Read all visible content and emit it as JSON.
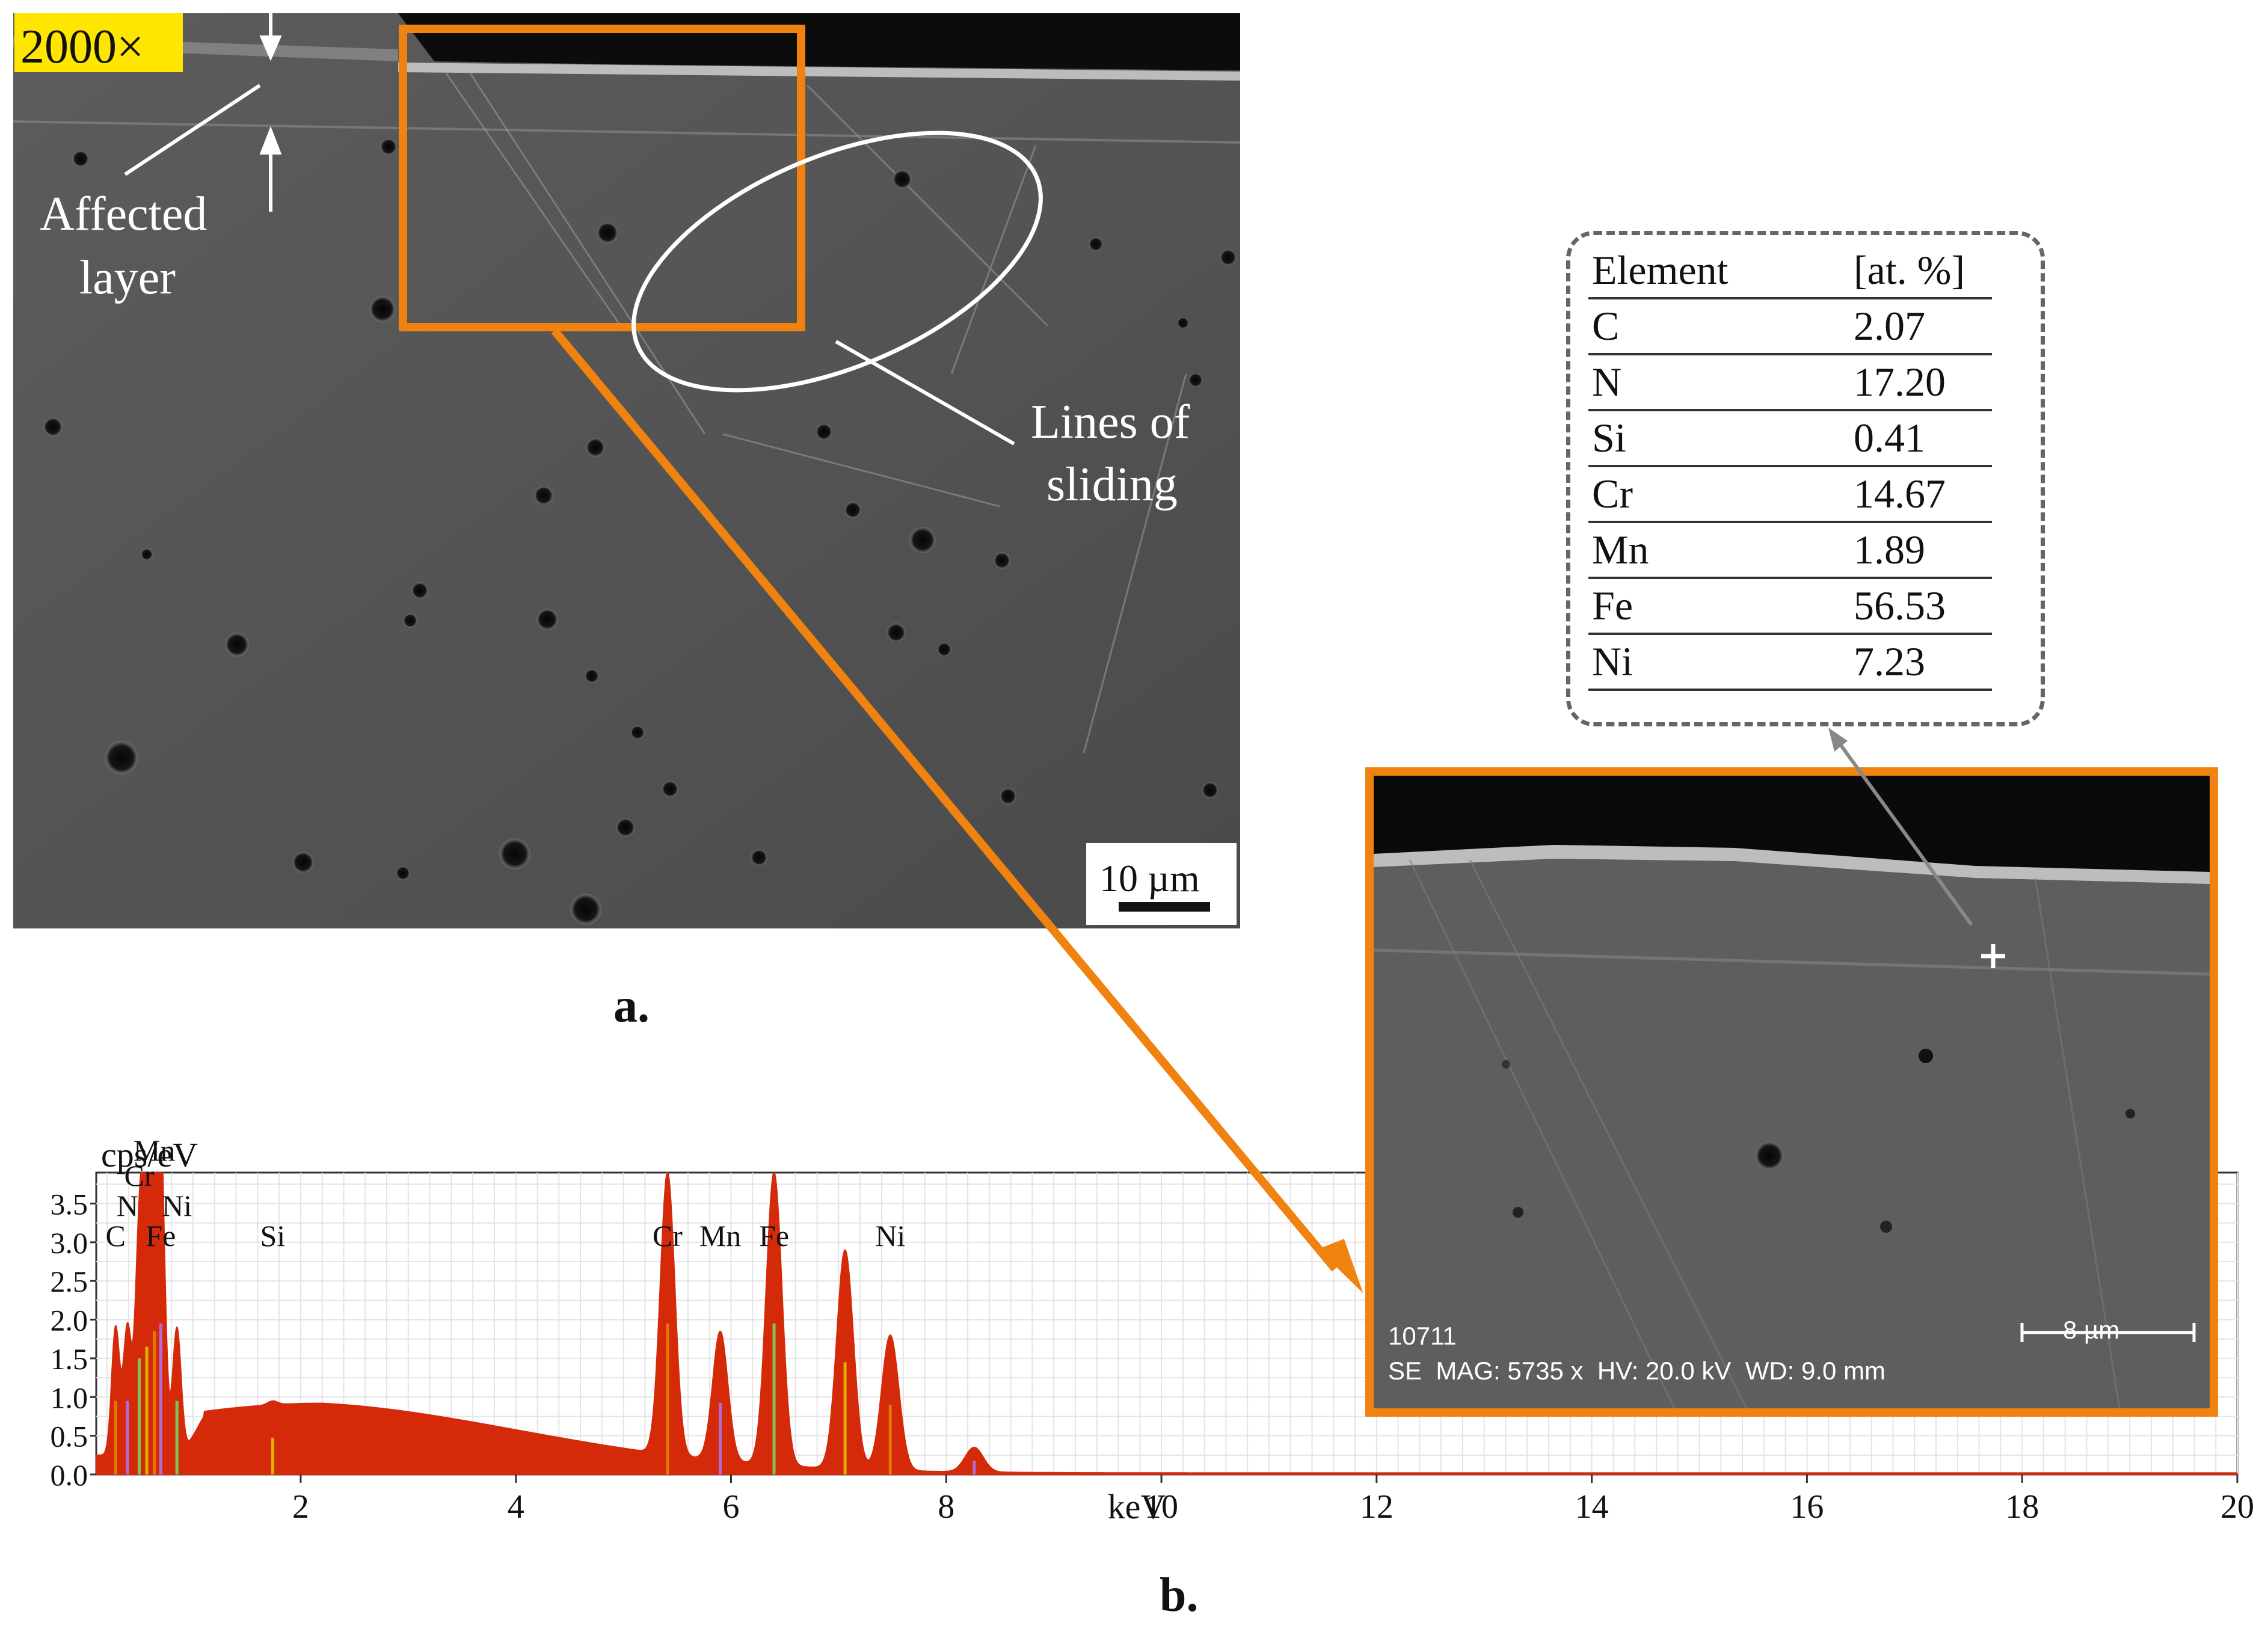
{
  "panel_a": {
    "magnification": "2000×",
    "annotation_affected_layer": [
      "Affected",
      "layer"
    ],
    "annotation_sliding": [
      "Lines of",
      "sliding"
    ],
    "scale_bar": "10 µm",
    "caption": "a."
  },
  "composition_table": {
    "headers": [
      "Element",
      "[at. %]"
    ],
    "rows": [
      {
        "element": "C",
        "value": "2.07"
      },
      {
        "element": "N",
        "value": "17.20"
      },
      {
        "element": "Si",
        "value": "0.41"
      },
      {
        "element": "Cr",
        "value": "14.67"
      },
      {
        "element": "Mn",
        "value": "1.89"
      },
      {
        "element": "Fe",
        "value": "56.53"
      },
      {
        "element": "Ni",
        "value": "7.23"
      }
    ]
  },
  "inset_sem": {
    "image_id": "10711",
    "info": "SE  MAG: 5735 x  HV: 20.0 kV  WD: 9.0 mm",
    "scale_bar": "8 µm",
    "accent_color": "#f0820f"
  },
  "chart_data": {
    "type": "area",
    "xlabel": "keV",
    "ylabel": "cps/eV",
    "xlim": [
      0,
      20
    ],
    "ylim": [
      0,
      3.9
    ],
    "x_ticks": [
      2,
      4,
      6,
      8,
      10,
      12,
      14,
      16,
      18,
      20
    ],
    "y_ticks": [
      0.0,
      0.5,
      1.0,
      1.5,
      2.0,
      2.5,
      3.0,
      3.5
    ],
    "fill_color": "#d42a0a",
    "peak_labels": [
      {
        "label": "C",
        "x": 0.28
      },
      {
        "label": "N",
        "x": 0.39
      },
      {
        "label": "Cr",
        "x": 0.5
      },
      {
        "label": "Mn",
        "x": 0.64
      },
      {
        "label": "Ni",
        "x": 0.85
      },
      {
        "label": "Fe",
        "x": 0.7
      },
      {
        "label": "Si",
        "x": 1.74
      },
      {
        "label": "Cr",
        "x": 5.41
      },
      {
        "label": "Mn",
        "x": 5.9
      },
      {
        "label": "Fe",
        "x": 6.4
      },
      {
        "label": "Ni",
        "x": 7.48
      }
    ],
    "peaks": [
      {
        "x": 0.28,
        "y": 1.9
      },
      {
        "x": 0.39,
        "y": 1.9
      },
      {
        "x": 0.5,
        "y": 3.0
      },
      {
        "x": 0.57,
        "y": 3.3
      },
      {
        "x": 0.64,
        "y": 3.7
      },
      {
        "x": 0.7,
        "y": 3.9
      },
      {
        "x": 0.85,
        "y": 1.9
      },
      {
        "x": 1.74,
        "y": 0.95
      },
      {
        "x": 5.41,
        "y": 3.9
      },
      {
        "x": 5.9,
        "y": 1.85
      },
      {
        "x": 6.4,
        "y": 3.9
      },
      {
        "x": 7.06,
        "y": 2.9
      },
      {
        "x": 7.48,
        "y": 1.8
      },
      {
        "x": 8.26,
        "y": 0.35
      }
    ],
    "caption": "b."
  }
}
